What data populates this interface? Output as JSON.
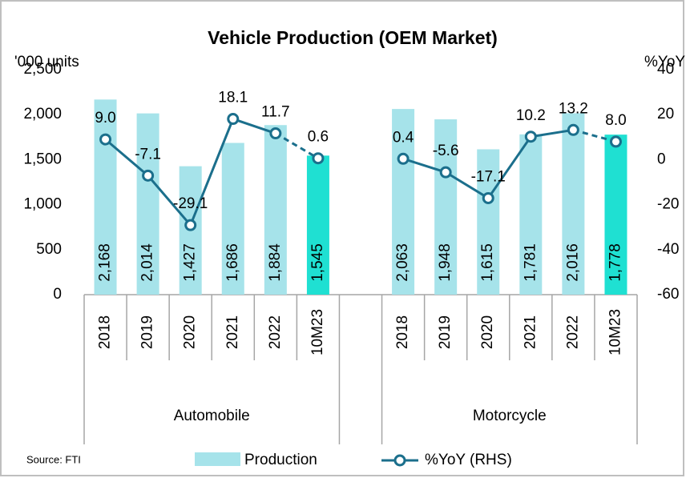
{
  "chart_data": {
    "type": "bar-line",
    "title": "Vehicle Production (OEM Market)",
    "y_label": "'000 units",
    "y2_label": "%YoY",
    "source": "Source: FTI",
    "groups": [
      {
        "name": "Automobile",
        "categories": [
          "2018",
          "2019",
          "2020",
          "2021",
          "2022",
          "10M23"
        ]
      },
      {
        "name": "Motorcycle",
        "categories": [
          "2018",
          "2019",
          "2020",
          "2021",
          "2022",
          "10M23"
        ]
      }
    ],
    "series": [
      {
        "name": "Production",
        "type": "bar",
        "color": "#a6e3ea",
        "colors": [
          "#a6e3ea",
          "#a6e3ea",
          "#a6e3ea",
          "#a6e3ea",
          "#a6e3ea",
          "#1fe0d2",
          "#a6e3ea",
          "#a6e3ea",
          "#a6e3ea",
          "#a6e3ea",
          "#a6e3ea",
          "#1fe0d2"
        ],
        "values": [
          2168,
          2014,
          1427,
          1686,
          1884,
          1545,
          2063,
          1948,
          1615,
          1781,
          2016,
          1778
        ],
        "value_labels": [
          "2,168",
          "2,014",
          "1,427",
          "1,686",
          "1,884",
          "1,545",
          "2,063",
          "1,948",
          "1,615",
          "1,781",
          "2,016",
          "1,778"
        ]
      },
      {
        "name": "%YoY (RHS)",
        "type": "line",
        "axis": "y2",
        "color": "#1b6f8c",
        "last_segment_dashed": true,
        "values": [
          9.0,
          -7.1,
          -29.1,
          18.1,
          11.7,
          0.6,
          0.4,
          -5.6,
          -17.1,
          10.2,
          13.2,
          8.0
        ],
        "value_labels": [
          "9.0",
          "-7.1",
          "-29.1",
          "18.1",
          "11.7",
          "0.6",
          "0.4",
          "-5.6",
          "-17.1",
          "10.2",
          "13.2",
          "8.0"
        ]
      }
    ],
    "ylim": [
      0,
      2500
    ],
    "yticks": [
      0,
      500,
      {
        "value": 1000,
        "label": "1,000"
      },
      {
        "value": 1500,
        "label": "1,500"
      },
      {
        "value": 2000,
        "label": "2,000"
      },
      {
        "value": 2500,
        "label": "2,500"
      }
    ],
    "y2lim": [
      -60,
      40
    ],
    "y2ticks": [
      -60,
      -40,
      -20,
      0,
      20,
      40
    ],
    "negative_color": "#ff0000"
  }
}
